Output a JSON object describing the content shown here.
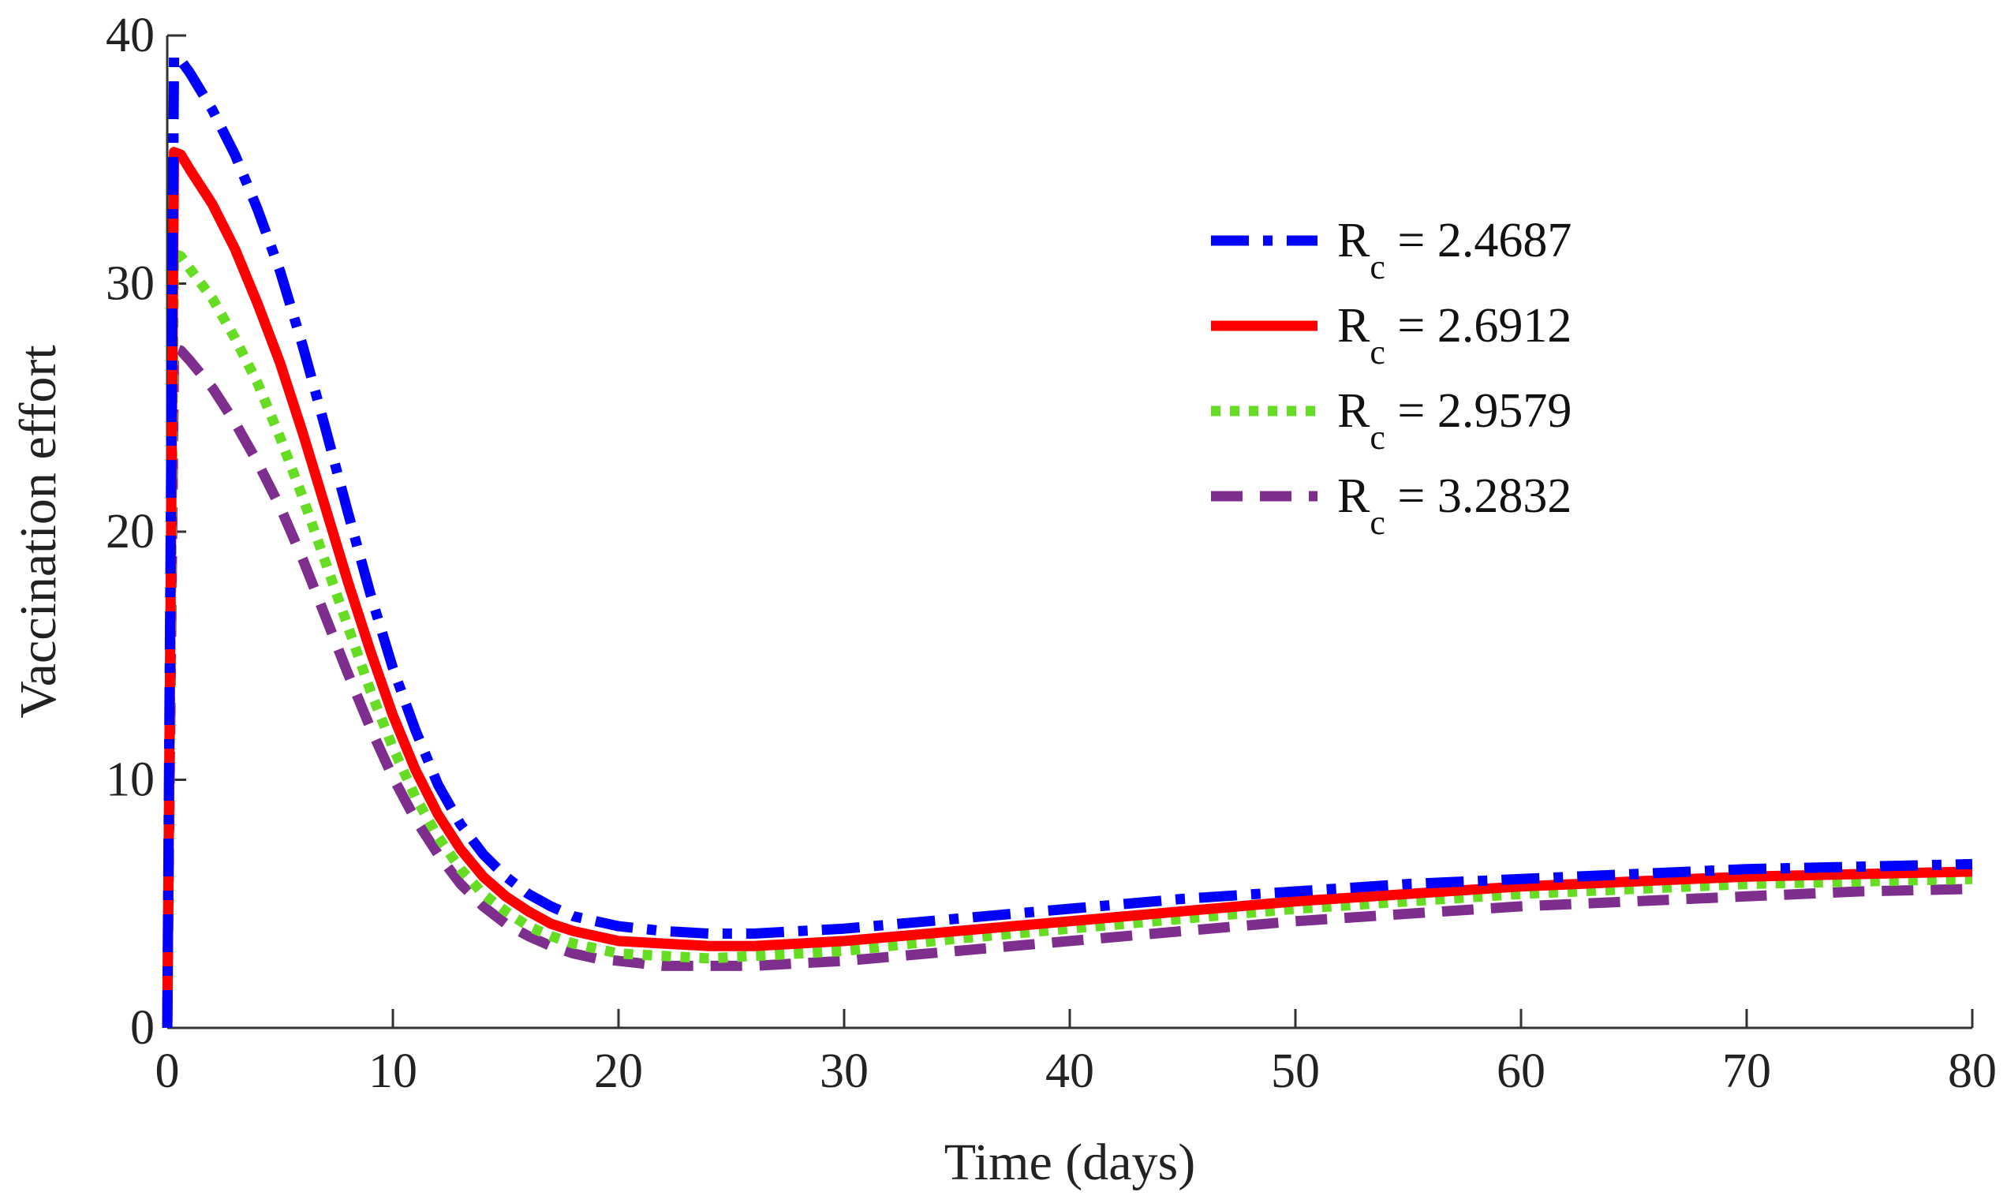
{
  "chart_data": {
    "type": "line",
    "title": "",
    "xlabel": "Time (days)",
    "ylabel": "Vaccination effort",
    "xlim": [
      0,
      80
    ],
    "ylim": [
      0,
      40
    ],
    "xticks": [
      0,
      10,
      20,
      30,
      40,
      50,
      60,
      70,
      80
    ],
    "yticks": [
      0,
      10,
      20,
      30,
      40
    ],
    "grid": false,
    "legend_position": "top-right",
    "series": [
      {
        "name": "R_c = 2.4687",
        "legend_main": "R",
        "legend_sub": "c",
        "legend_value": " = 2.4687",
        "color": "#0000ff",
        "style": "dash-dot",
        "x": [
          0,
          0.3,
          0.6,
          1,
          2,
          3,
          4,
          5,
          6,
          7,
          8,
          9,
          10,
          11,
          12,
          13,
          14,
          15,
          16,
          17,
          18,
          19,
          20,
          22,
          24,
          26,
          28,
          30,
          35,
          40,
          45,
          50,
          55,
          60,
          65,
          70,
          75,
          80
        ],
        "y": [
          0,
          39.2,
          39,
          38.5,
          37,
          35.2,
          33,
          30.5,
          27.5,
          24.2,
          20.8,
          17.5,
          14.5,
          12,
          9.8,
          8.2,
          7,
          6.1,
          5.4,
          4.9,
          4.5,
          4.3,
          4.1,
          3.9,
          3.8,
          3.8,
          3.9,
          4.0,
          4.4,
          4.8,
          5.2,
          5.5,
          5.8,
          6.0,
          6.2,
          6.4,
          6.5,
          6.6
        ]
      },
      {
        "name": "R_c = 2.6912",
        "legend_main": "R",
        "legend_sub": "c",
        "legend_value": " = 2.6912",
        "color": "#ff0000",
        "style": "solid",
        "x": [
          0,
          0.3,
          0.6,
          1,
          2,
          3,
          4,
          5,
          6,
          7,
          8,
          9,
          10,
          11,
          12,
          13,
          14,
          15,
          16,
          17,
          18,
          19,
          20,
          22,
          24,
          26,
          28,
          30,
          35,
          40,
          45,
          50,
          55,
          60,
          65,
          70,
          75,
          80
        ],
        "y": [
          0,
          35.3,
          35.2,
          34.6,
          33.2,
          31.4,
          29.2,
          26.8,
          24,
          21,
          18,
          15.2,
          12.6,
          10.4,
          8.6,
          7.2,
          6.1,
          5.3,
          4.7,
          4.2,
          3.9,
          3.7,
          3.5,
          3.4,
          3.3,
          3.3,
          3.4,
          3.5,
          3.9,
          4.3,
          4.7,
          5.1,
          5.4,
          5.7,
          5.9,
          6.1,
          6.2,
          6.3
        ]
      },
      {
        "name": "R_c = 2.9579",
        "legend_main": "R",
        "legend_sub": "c",
        "legend_value": " = 2.9579",
        "color": "#66dd22",
        "style": "dotted",
        "x": [
          0,
          0.3,
          0.6,
          1,
          2,
          3,
          4,
          5,
          6,
          7,
          8,
          9,
          10,
          11,
          12,
          13,
          14,
          15,
          16,
          17,
          18,
          19,
          20,
          22,
          24,
          26,
          28,
          30,
          35,
          40,
          45,
          50,
          55,
          60,
          65,
          70,
          75,
          80
        ],
        "y": [
          0,
          31.2,
          31.1,
          30.6,
          29.4,
          27.8,
          26,
          23.8,
          21.4,
          18.8,
          16.2,
          13.6,
          11.3,
          9.3,
          7.7,
          6.4,
          5.4,
          4.7,
          4.1,
          3.7,
          3.4,
          3.2,
          3.0,
          2.9,
          2.8,
          2.9,
          3.0,
          3.1,
          3.6,
          4.0,
          4.4,
          4.8,
          5.1,
          5.4,
          5.6,
          5.8,
          5.9,
          6.0
        ]
      },
      {
        "name": "R_c = 3.2832",
        "legend_main": "R",
        "legend_sub": "c",
        "legend_value": " = 3.2832",
        "color": "#7e2f8e",
        "style": "dashed",
        "x": [
          0,
          0.3,
          0.6,
          1,
          2,
          3,
          4,
          5,
          6,
          7,
          8,
          9,
          10,
          11,
          12,
          13,
          14,
          15,
          16,
          17,
          18,
          19,
          20,
          22,
          24,
          26,
          28,
          30,
          35,
          40,
          45,
          50,
          55,
          60,
          65,
          70,
          75,
          80
        ],
        "y": [
          0,
          27.4,
          27.3,
          26.9,
          25.8,
          24.4,
          22.8,
          21,
          18.9,
          16.6,
          14.3,
          12.1,
          10.1,
          8.4,
          7,
          5.8,
          4.9,
          4.2,
          3.7,
          3.3,
          3.0,
          2.8,
          2.7,
          2.5,
          2.5,
          2.5,
          2.6,
          2.7,
          3.1,
          3.5,
          3.9,
          4.3,
          4.6,
          4.9,
          5.1,
          5.3,
          5.5,
          5.6
        ]
      }
    ]
  }
}
